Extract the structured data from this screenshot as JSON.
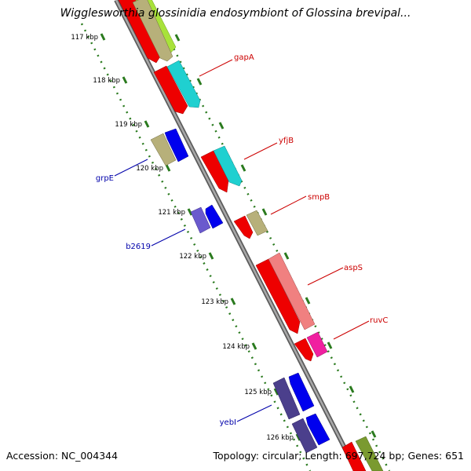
{
  "title": "Wigglesworthia glossinidia endosymbiont of Glossina brevipal...",
  "accession": "Accession: NC_004344",
  "summary": "Topology: circular; Length: 697,724 bp; Genes: 651",
  "colors": {
    "backbone": "#8c8c8c",
    "tick": "#2a7a1e",
    "forward_label": "#cc0000",
    "reverse_label": "#0000aa"
  },
  "ticks": [
    "117 kbp",
    "118 kbp",
    "119 kbp",
    "120 kbp",
    "121 kbp",
    "122 kbp",
    "123 kbp",
    "124 kbp",
    "125 kbp",
    "126 kbp"
  ],
  "genes": [
    {
      "name": "gapA",
      "strand": "forward"
    },
    {
      "name": "yfjB",
      "strand": "forward"
    },
    {
      "name": "smpB",
      "strand": "forward"
    },
    {
      "name": "aspS",
      "strand": "forward"
    },
    {
      "name": "ruvC",
      "strand": "forward"
    },
    {
      "name": "grpE",
      "strand": "reverse"
    },
    {
      "name": "b2619",
      "strand": "reverse"
    },
    {
      "name": "yebI",
      "strand": "reverse"
    }
  ]
}
